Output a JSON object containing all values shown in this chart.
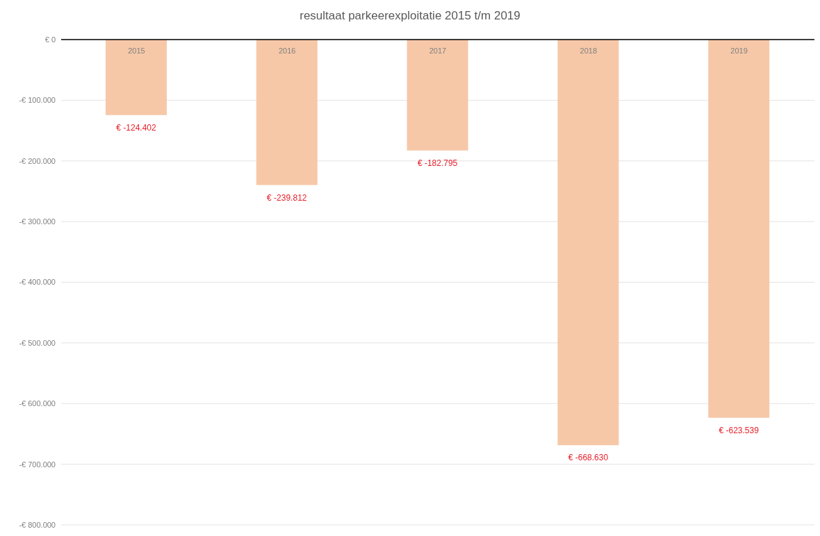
{
  "chart_data": {
    "type": "bar",
    "title": "resultaat parkeerexploitatie  2015 t/m 2019",
    "categories": [
      "2015",
      "2016",
      "2017",
      "2018",
      "2019"
    ],
    "values": [
      -124402,
      -239812,
      -182795,
      -668630,
      -623539
    ],
    "value_labels": [
      "€ -124.402",
      "€ -239.812",
      "€ -182.795",
      "€ -668.630",
      "€ -623.539"
    ],
    "color": "#f6c8a8",
    "ylim": [
      -800000,
      0
    ],
    "yticks": [
      {
        "value": 0,
        "label": "€ 0"
      },
      {
        "value": -100000,
        "label": "-€ 100.000"
      },
      {
        "value": -200000,
        "label": "-€ 200.000"
      },
      {
        "value": -300000,
        "label": "-€ 300.000"
      },
      {
        "value": -400000,
        "label": "-€ 400.000"
      },
      {
        "value": -500000,
        "label": "-€ 500.000"
      },
      {
        "value": -600000,
        "label": "-€ 600.000"
      },
      {
        "value": -700000,
        "label": "-€ 700.000"
      },
      {
        "value": -800000,
        "label": "-€ 800.000"
      }
    ],
    "grid": "y"
  }
}
